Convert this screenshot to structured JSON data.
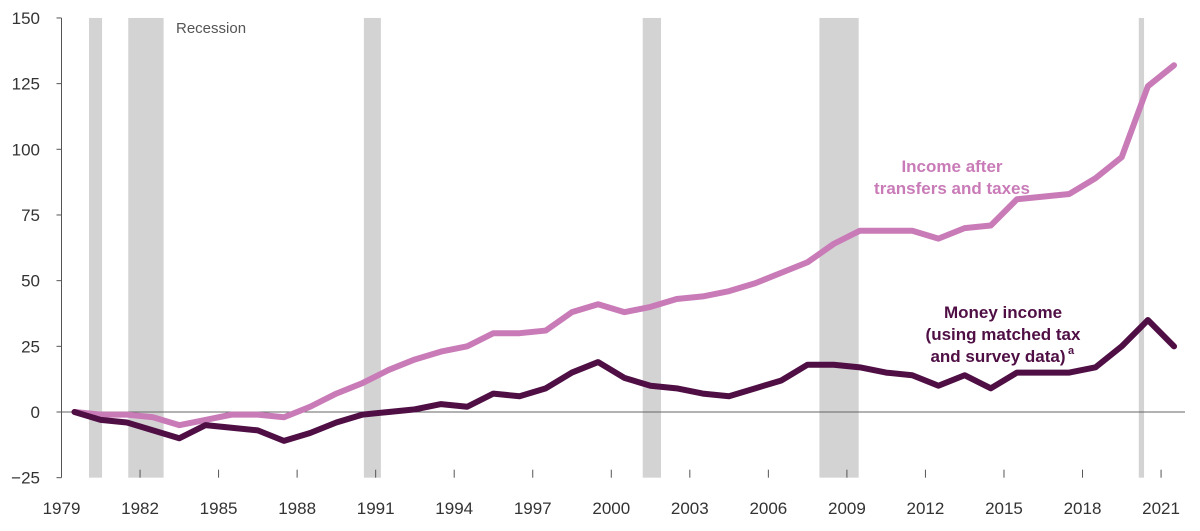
{
  "chart_data": {
    "type": "line",
    "title": "",
    "xlabel": "",
    "ylabel": "",
    "ylim": [
      -25,
      150
    ],
    "xlim": [
      1979,
      2022
    ],
    "yticks": [
      -25,
      0,
      25,
      50,
      75,
      100,
      125,
      150
    ],
    "ytick_labels": [
      "−25",
      "0",
      "25",
      "50",
      "75",
      "100",
      "125",
      "150"
    ],
    "xticks": [
      1979,
      1982,
      1985,
      1988,
      1991,
      1994,
      1997,
      2000,
      2003,
      2006,
      2009,
      2012,
      2015,
      2018,
      2021
    ],
    "xtick_labels": [
      "1979",
      "1982",
      "1985",
      "1988",
      "1991",
      "1994",
      "1997",
      "2000",
      "2003",
      "2006",
      "2009",
      "2012",
      "2015",
      "2018",
      "2021"
    ],
    "x": [
      1979,
      1980,
      1981,
      1982,
      1983,
      1984,
      1985,
      1986,
      1987,
      1988,
      1989,
      1990,
      1991,
      1992,
      1993,
      1994,
      1995,
      1996,
      1997,
      1998,
      1999,
      2000,
      2001,
      2002,
      2003,
      2004,
      2005,
      2006,
      2007,
      2008,
      2009,
      2010,
      2011,
      2012,
      2013,
      2014,
      2015,
      2016,
      2017,
      2018,
      2019,
      2020,
      2021
    ],
    "series": [
      {
        "name": "Income after transfers and taxes",
        "label_lines": [
          "Income after",
          "transfers and taxes"
        ],
        "color": "#c97bb8",
        "values": [
          0,
          -1,
          -1,
          -2,
          -5,
          -3,
          -1,
          -1,
          -2,
          2,
          7,
          11,
          16,
          20,
          23,
          25,
          30,
          30,
          31,
          38,
          41,
          38,
          40,
          43,
          44,
          46,
          49,
          53,
          57,
          64,
          69,
          69,
          69,
          66,
          70,
          71,
          81,
          82,
          83,
          89,
          97,
          124,
          132
        ]
      },
      {
        "name": "Money income (using matched tax and survey data)a",
        "label_lines": [
          "Money income",
          "(using matched tax",
          "and survey data)"
        ],
        "label_superscript": "a",
        "color": "#4f0f45",
        "values": [
          0,
          -3,
          -4,
          -7,
          -10,
          -5,
          -6,
          -7,
          -11,
          -8,
          -4,
          -1,
          0,
          1,
          3,
          2,
          7,
          6,
          9,
          15,
          19,
          13,
          10,
          9,
          7,
          6,
          9,
          12,
          18,
          18,
          17,
          15,
          14,
          10,
          14,
          9,
          15,
          15,
          15,
          17,
          25,
          35,
          25
        ]
      }
    ],
    "recession_label": "Recession",
    "recession_color": "#d3d3d3",
    "recessions": [
      [
        1980.05,
        1980.55
      ],
      [
        1981.55,
        1982.9
      ],
      [
        1990.55,
        1991.2
      ],
      [
        2001.2,
        2001.9
      ],
      [
        2007.95,
        2009.45
      ],
      [
        2020.15,
        2020.35
      ]
    ],
    "grid": false,
    "legend": "inline-labels"
  }
}
